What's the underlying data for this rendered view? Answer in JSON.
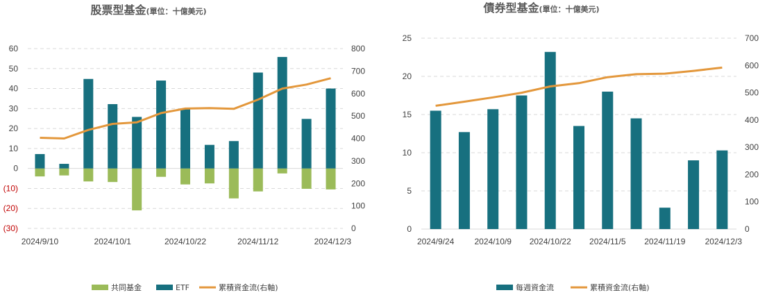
{
  "colors": {
    "mutual": "#9bbb59",
    "etf": "#17707f",
    "weekly": "#17707f",
    "cumulative": "#e3973b"
  },
  "chart_data": [
    {
      "type": "bar",
      "title": "股票型基金",
      "subtitle": "(單位：十億美元)",
      "categories": [
        "2024/9/10",
        "2024/9/17",
        "2024/9/24",
        "2024/10/1",
        "2024/10/8",
        "2024/10/15",
        "2024/10/22",
        "2024/10/29",
        "2024/11/5",
        "2024/11/12",
        "2024/11/19",
        "2024/11/26",
        "2024/12/3"
      ],
      "x_tick_labels": [
        "2024/9/10",
        "2024/10/1",
        "2024/10/22",
        "2024/11/12",
        "2024/12/3"
      ],
      "series": [
        {
          "name": "共同基金",
          "type": "bar",
          "axis": "left",
          "values": [
            -4,
            -3.5,
            -6.5,
            -6.8,
            -21,
            -4.2,
            -8,
            -7.5,
            -15,
            -11.5,
            -2.5,
            -10.2,
            -10.5
          ]
        },
        {
          "name": "ETF",
          "type": "bar",
          "axis": "left",
          "values": [
            7.2,
            2.3,
            44.8,
            32.2,
            25.8,
            44,
            30,
            11.8,
            13.7,
            48,
            55.8,
            24.8,
            40
          ]
        },
        {
          "name": "累積資金流(右軸)",
          "type": "line",
          "axis": "right",
          "values": [
            403,
            400,
            438,
            465,
            472,
            513,
            533,
            535,
            532,
            573,
            622,
            640,
            668
          ]
        }
      ],
      "y_left": {
        "ylim": [
          -30,
          60
        ],
        "ticks": [
          "(30)",
          "(20)",
          "(10)",
          "0",
          "10",
          "20",
          "30",
          "40",
          "50",
          "60"
        ]
      },
      "y_right": {
        "ylim": [
          0,
          800
        ],
        "ticks": [
          "0",
          "100",
          "200",
          "300",
          "400",
          "500",
          "600",
          "700",
          "800"
        ]
      },
      "grid": true,
      "legend": "bottom"
    },
    {
      "type": "bar",
      "title": "債券型基金",
      "subtitle": "(單位：十億美元)",
      "categories": [
        "2024/9/24",
        "2024/10/1",
        "2024/10/9",
        "2024/10/15",
        "2024/10/22",
        "2024/10/29",
        "2024/11/5",
        "2024/11/12",
        "2024/11/19",
        "2024/11/26",
        "2024/12/3"
      ],
      "x_tick_labels": [
        "2024/9/24",
        "2024/10/9",
        "2024/10/22",
        "2024/11/5",
        "2024/11/19",
        "2024/12/3"
      ],
      "series": [
        {
          "name": "每週資金流",
          "type": "bar",
          "axis": "left",
          "values": [
            15.5,
            12.7,
            15.7,
            17.5,
            23.2,
            13.5,
            18,
            14.5,
            2.8,
            9,
            10.3
          ]
        },
        {
          "name": "累積資金流(右軸)",
          "type": "line",
          "axis": "right",
          "values": [
            452,
            467,
            483,
            500,
            523,
            535,
            557,
            568,
            570,
            580,
            592
          ]
        }
      ],
      "y_left": {
        "ylim": [
          0,
          25
        ],
        "ticks": [
          "0",
          "5",
          "10",
          "15",
          "20",
          "25"
        ]
      },
      "y_right": {
        "ylim": [
          0,
          700
        ],
        "ticks": [
          "0",
          "100",
          "200",
          "300",
          "400",
          "500",
          "600",
          "700"
        ]
      },
      "grid": true,
      "legend": "bottom"
    }
  ]
}
